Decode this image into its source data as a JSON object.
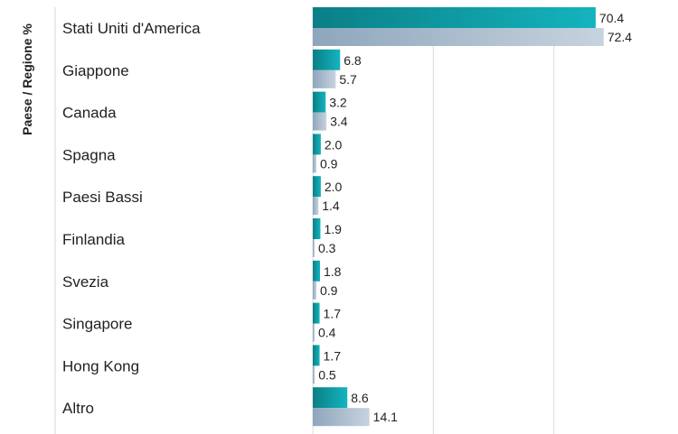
{
  "chart_data": {
    "type": "bar",
    "orientation": "horizontal",
    "ylabel": "Paese / Regione %",
    "categories": [
      "Stati Uniti d'America",
      "Giappone",
      "Canada",
      "Spagna",
      "Paesi Bassi",
      "Finlandia",
      "Svezia",
      "Singapore",
      "Hong Kong",
      "Altro"
    ],
    "series": [
      {
        "values": [
          70.4,
          6.8,
          3.2,
          2.0,
          2.0,
          1.9,
          1.8,
          1.7,
          1.7,
          8.6
        ],
        "color_start": "#0a7f86",
        "color_end": "#14b4be"
      },
      {
        "values": [
          72.4,
          5.7,
          3.4,
          0.9,
          1.4,
          0.3,
          0.9,
          0.4,
          0.5,
          14.1
        ],
        "color_start": "#8ea6bc",
        "color_end": "#c7d3de"
      }
    ],
    "xlim": [
      0,
      80
    ],
    "grid": true,
    "legend": "none"
  }
}
